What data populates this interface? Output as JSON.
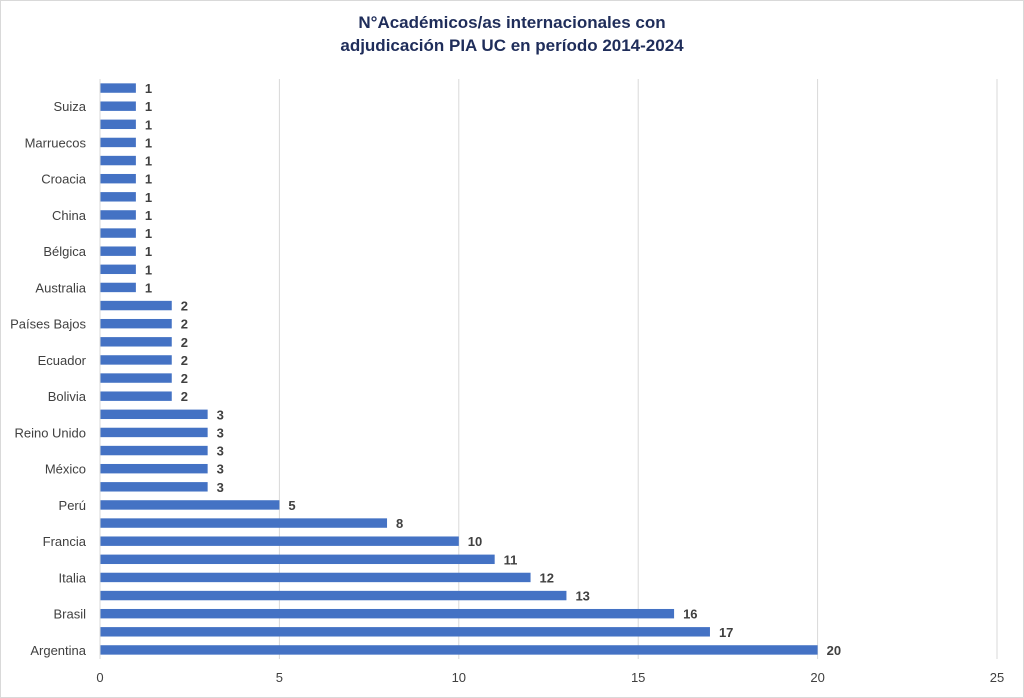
{
  "chart_data": {
    "type": "bar",
    "orientation": "horizontal",
    "title_lines": [
      "N°Académicos/as internacionales con",
      "adjudicación PIA UC en período 2014-2024"
    ],
    "categories": [
      "Argentina",
      "",
      "Brasil",
      "",
      "Italia",
      "",
      "Francia",
      "",
      "Perú",
      "",
      "México",
      "",
      "Reino Unido",
      "",
      "Bolivia",
      "",
      "Ecuador",
      "",
      "Países Bajos",
      "",
      "Australia",
      "",
      "Bélgica",
      "",
      "China",
      "",
      "Croacia",
      "",
      "Marruecos",
      "",
      "Suiza",
      ""
    ],
    "values": [
      20,
      17,
      16,
      13,
      12,
      11,
      10,
      8,
      5,
      3,
      3,
      3,
      3,
      3,
      2,
      2,
      2,
      2,
      2,
      2,
      1,
      1,
      1,
      1,
      1,
      1,
      1,
      1,
      1,
      1,
      1,
      1
    ],
    "xlim": [
      0,
      25
    ],
    "xticks": [
      0,
      5,
      10,
      15,
      20,
      25
    ],
    "xlabel": "",
    "ylabel": "",
    "grid": "vertical",
    "legend": "none",
    "bar_color": "#4472c4",
    "grid_color": "#d9d9d9",
    "title_color": "#1f2d5a"
  }
}
